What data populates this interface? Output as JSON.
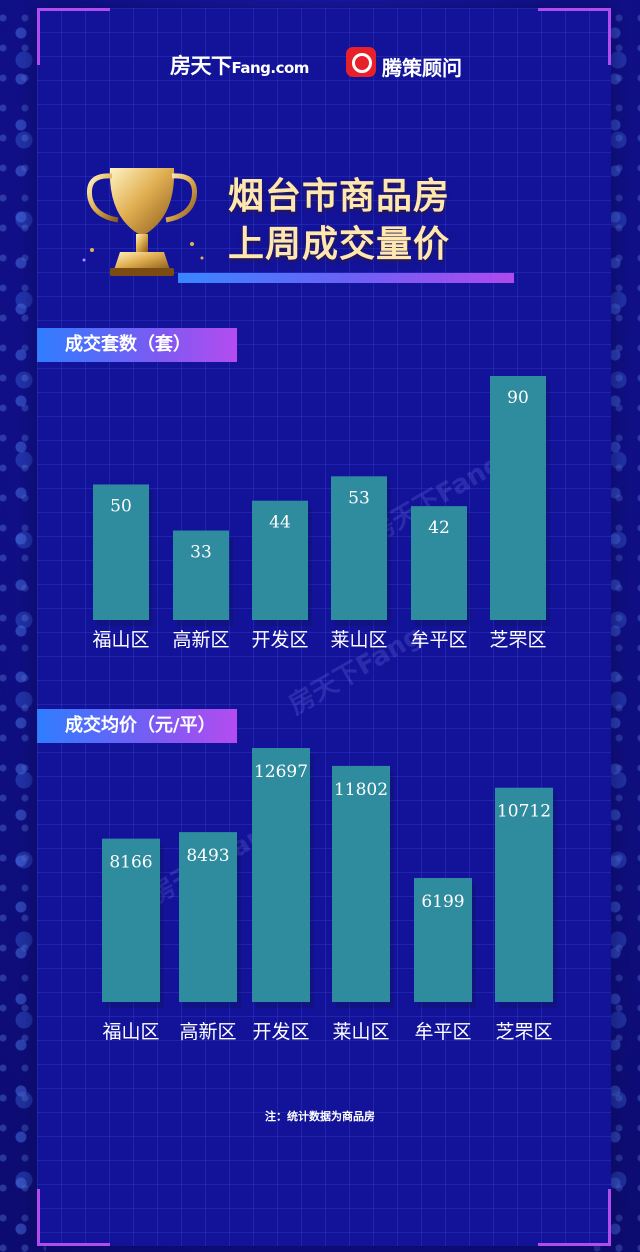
{
  "logos": {
    "fang_main": "房天下",
    "fang_sub": "Fang.com",
    "tengce": "腾策顾问"
  },
  "title": {
    "line1": "烟台市商品房",
    "line2": "上周成交量价"
  },
  "watermark": "房天下Fang",
  "colors": {
    "bar": "#2f8b9e",
    "background": "#13139a",
    "accent": "#b04cf0",
    "title": "#ffe7b0"
  },
  "chart_data": [
    {
      "type": "bar",
      "title": "成交套数（套）",
      "categories": [
        "福山区",
        "高新区",
        "开发区",
        "莱山区",
        "牟平区",
        "芝罘区"
      ],
      "values": [
        50,
        33,
        44,
        53,
        42,
        90
      ],
      "data_labels": [
        "50",
        "33",
        "44",
        "53",
        "42",
        "90"
      ],
      "ylim": [
        0,
        90
      ],
      "grid": false,
      "legend": "none"
    },
    {
      "type": "bar",
      "title": "成交均价（元/平）",
      "categories": [
        "福山区",
        "高新区",
        "开发区",
        "莱山区",
        "牟平区",
        "芝罘区"
      ],
      "values": [
        8166,
        8493,
        12697,
        11802,
        6199,
        10712
      ],
      "data_labels": [
        "8166",
        "8493",
        "12697",
        "11802",
        "6199",
        "10712"
      ],
      "ylim": [
        0,
        12697
      ],
      "grid": false,
      "legend": "none"
    }
  ],
  "note": "注：统计数据为商品房"
}
